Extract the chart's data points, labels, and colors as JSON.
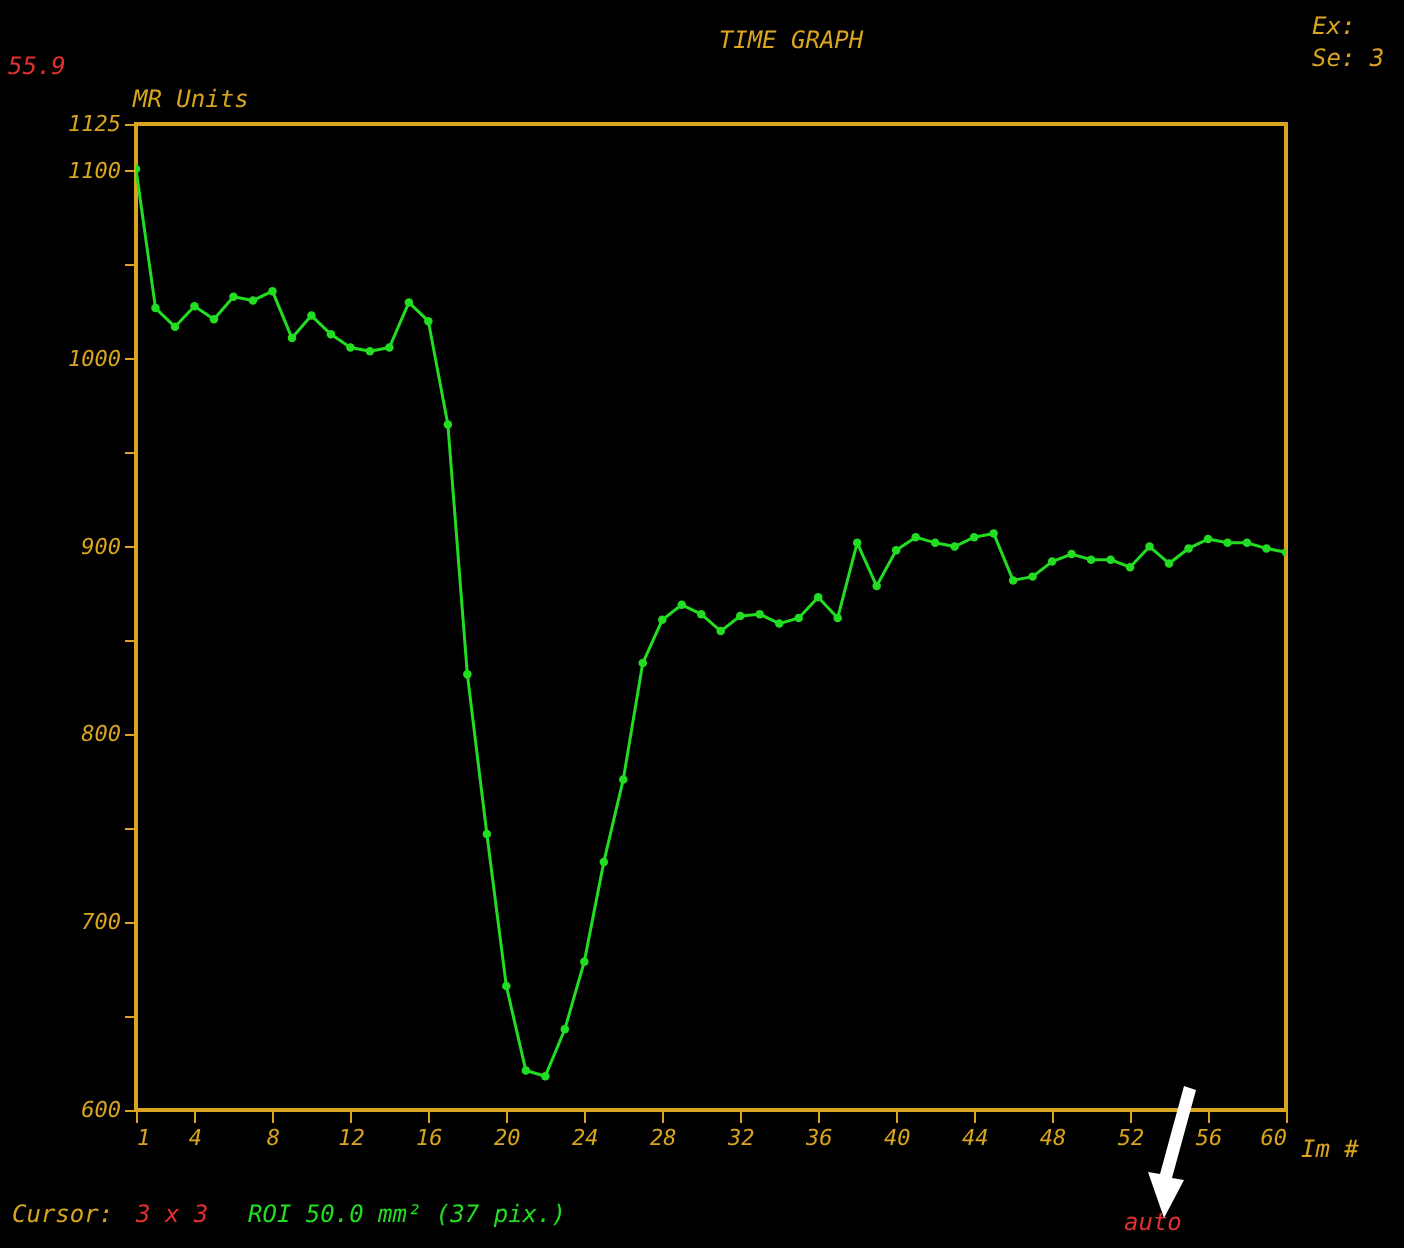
{
  "chart_data": {
    "type": "line",
    "title": "TIME GRAPH",
    "xlabel": "Im #",
    "ylabel": "MR Units",
    "x": [
      1,
      2,
      3,
      4,
      5,
      6,
      7,
      8,
      9,
      10,
      11,
      12,
      13,
      14,
      15,
      16,
      17,
      18,
      19,
      20,
      21,
      22,
      23,
      24,
      25,
      26,
      27,
      28,
      29,
      30,
      31,
      32,
      33,
      34,
      35,
      36,
      37,
      38,
      39,
      40,
      41,
      42,
      43,
      44,
      45,
      46,
      47,
      48,
      49,
      50,
      51,
      52,
      53,
      54,
      55,
      56,
      57,
      58,
      59,
      60
    ],
    "series": [
      {
        "color": "#22dd22",
        "values": [
          1101,
          1027,
          1017,
          1028,
          1021,
          1033,
          1031,
          1036,
          1011,
          1023,
          1013,
          1006,
          1004,
          1006,
          1030,
          1020,
          965,
          832,
          747,
          666,
          621,
          618,
          643,
          679,
          732,
          776,
          838,
          861,
          869,
          864,
          855,
          863,
          864,
          859,
          862,
          873,
          862,
          902,
          879,
          898,
          905,
          902,
          900,
          905,
          907,
          882,
          884,
          892,
          896,
          893,
          893,
          889,
          900,
          891,
          899,
          904,
          902,
          902,
          899,
          897
        ]
      }
    ],
    "xlim": [
      1,
      60
    ],
    "xticks": [
      1,
      4,
      8,
      12,
      16,
      20,
      24,
      28,
      32,
      36,
      40,
      44,
      48,
      52,
      56,
      60
    ],
    "ylim": [
      600,
      1125
    ],
    "yticks": [
      600,
      {
        "value": 650,
        "label": null
      },
      700,
      {
        "value": 750,
        "label": null
      },
      800,
      {
        "value": 850,
        "label": null
      },
      900,
      {
        "value": 950,
        "label": null
      },
      1000,
      {
        "value": 1050,
        "label": null
      },
      1100,
      1125
    ],
    "grid": false,
    "marker": "circle",
    "line_style": "solid",
    "annotations": [
      "55.9",
      "Ex:",
      "Se: 3",
      "Cursor:",
      "3 x 3",
      "ROI 50.0 mm² (37 pix.)",
      "auto"
    ]
  }
}
